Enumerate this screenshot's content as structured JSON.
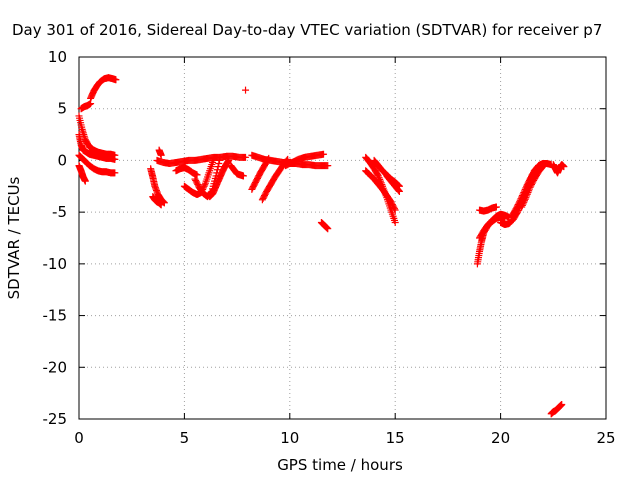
{
  "chart_data": {
    "type": "scatter",
    "title": "Day 301 of 2016, Sidereal Day-to-day VTEC variation (SDTVAR) for receiver p7",
    "xlabel": "GPS time / hours",
    "ylabel": "SDTVAR / TECUs",
    "xlim": [
      0,
      25
    ],
    "ylim": [
      -25,
      10
    ],
    "xticks": [
      0,
      5,
      10,
      15,
      20,
      25
    ],
    "yticks": [
      -25,
      -20,
      -15,
      -10,
      -5,
      0,
      5,
      10
    ],
    "grid": true,
    "marker": "+",
    "color": "#ff0000",
    "segments": [
      {
        "x": [
          0.0,
          0.1,
          0.2,
          0.35,
          0.5,
          0.7,
          0.9,
          1.1,
          1.3,
          1.5,
          1.7
        ],
        "y": [
          2.5,
          1.5,
          1.0,
          0.8,
          0.6,
          0.5,
          0.4,
          0.3,
          0.2,
          0.2,
          0.1
        ]
      },
      {
        "x": [
          0.0,
          0.15,
          0.3,
          0.5,
          0.7,
          0.9,
          1.1,
          1.3,
          1.5,
          1.7
        ],
        "y": [
          4.3,
          3.0,
          2.0,
          1.3,
          1.0,
          0.8,
          0.7,
          0.6,
          0.6,
          0.5
        ]
      },
      {
        "x": [
          0.0,
          0.15,
          0.3,
          0.5,
          0.7,
          0.9,
          1.1,
          1.3,
          1.5,
          1.7
        ],
        "y": [
          0.5,
          0.2,
          -0.1,
          -0.5,
          -0.8,
          -1.0,
          -1.1,
          -1.1,
          -1.2,
          -1.2
        ]
      },
      {
        "x": [
          0.0,
          0.1,
          0.2,
          0.3
        ],
        "y": [
          -0.5,
          -1.0,
          -1.6,
          -2.0
        ]
      },
      {
        "x": [
          0.1,
          0.25,
          0.4,
          0.55
        ],
        "y": [
          5.0,
          5.2,
          5.3,
          5.5
        ]
      },
      {
        "x": [
          0.55,
          0.7,
          0.85,
          1.0,
          1.2,
          1.4,
          1.6,
          1.75
        ],
        "y": [
          6.0,
          6.7,
          7.2,
          7.6,
          7.9,
          8.0,
          7.9,
          7.8
        ]
      },
      {
        "x": [
          3.4,
          3.5,
          3.6,
          3.75,
          3.9,
          4.05
        ],
        "y": [
          -0.8,
          -1.6,
          -2.5,
          -3.3,
          -3.8,
          -4.1
        ]
      },
      {
        "x": [
          3.5,
          3.6,
          3.7,
          3.8,
          3.9
        ],
        "y": [
          -3.5,
          -3.8,
          -4.0,
          -4.1,
          -4.3
        ]
      },
      {
        "x": [
          3.8,
          3.9
        ],
        "y": [
          1.0,
          0.5
        ]
      },
      {
        "x": [
          3.7,
          4.0,
          4.3,
          4.6,
          4.9,
          5.2,
          5.5,
          5.8,
          6.1,
          6.4,
          6.7,
          7.0,
          7.3,
          7.6,
          7.9
        ],
        "y": [
          0.0,
          -0.2,
          -0.3,
          -0.2,
          -0.1,
          0.0,
          0.0,
          0.1,
          0.2,
          0.3,
          0.3,
          0.4,
          0.4,
          0.3,
          0.3
        ]
      },
      {
        "x": [
          4.6,
          4.8,
          5.0,
          5.2,
          5.4,
          5.6
        ],
        "y": [
          -1.0,
          -0.8,
          -0.7,
          -0.9,
          -1.2,
          -1.4
        ]
      },
      {
        "x": [
          5.0,
          5.2,
          5.4,
          5.6,
          5.8,
          6.0,
          6.2,
          6.4
        ],
        "y": [
          -2.5,
          -2.8,
          -3.1,
          -3.3,
          -3.1,
          -2.2,
          -1.0,
          0.2
        ]
      },
      {
        "x": [
          5.5,
          5.7,
          5.9,
          6.1,
          6.3,
          6.5,
          6.7
        ],
        "y": [
          -1.8,
          -2.6,
          -3.2,
          -3.5,
          -3.0,
          -1.5,
          0.3
        ]
      },
      {
        "x": [
          6.2,
          6.35,
          6.5,
          6.65,
          6.8,
          6.95,
          7.1
        ],
        "y": [
          -3.5,
          -3.2,
          -2.5,
          -1.8,
          -1.1,
          -0.5,
          0.0
        ]
      },
      {
        "x": [
          7.2,
          7.35,
          7.5,
          7.65,
          7.8
        ],
        "y": [
          -0.5,
          -0.9,
          -1.3,
          -1.4,
          -1.5
        ]
      },
      {
        "x": [
          7.9
        ],
        "y": [
          6.8
        ]
      },
      {
        "x": [
          8.2,
          8.5,
          8.8,
          9.1,
          9.4,
          9.7,
          10.0,
          10.3,
          10.6,
          10.9,
          11.2,
          11.5,
          11.8
        ],
        "y": [
          0.5,
          0.3,
          0.1,
          0.0,
          -0.1,
          -0.2,
          -0.3,
          -0.3,
          -0.4,
          -0.4,
          -0.5,
          -0.5,
          -0.5
        ]
      },
      {
        "x": [
          8.2,
          8.4,
          8.6,
          8.8,
          9.0
        ],
        "y": [
          -2.8,
          -2.0,
          -1.2,
          -0.5,
          0.2
        ]
      },
      {
        "x": [
          8.7,
          8.9,
          9.1,
          9.3,
          9.5,
          9.7,
          9.9
        ],
        "y": [
          -3.8,
          -3.0,
          -2.3,
          -1.6,
          -1.0,
          -0.4,
          0.1
        ]
      },
      {
        "x": [
          9.8,
          10.1,
          10.4,
          10.7,
          11.0,
          11.3,
          11.6
        ],
        "y": [
          -0.5,
          -0.2,
          0.1,
          0.3,
          0.4,
          0.5,
          0.6
        ]
      },
      {
        "x": [
          11.5,
          11.65,
          11.8
        ],
        "y": [
          -6.0,
          -6.3,
          -6.6
        ]
      },
      {
        "x": [
          13.6,
          13.8,
          14.0,
          14.2,
          14.4,
          14.6,
          14.8,
          15.0
        ],
        "y": [
          0.3,
          -0.2,
          -0.8,
          -1.5,
          -2.5,
          -3.6,
          -4.8,
          -6.0
        ]
      },
      {
        "x": [
          13.6,
          13.8,
          14.0,
          14.2,
          14.4,
          14.6,
          14.8,
          15.0
        ],
        "y": [
          -1.0,
          -1.4,
          -1.8,
          -2.3,
          -2.8,
          -3.4,
          -4.0,
          -4.8
        ]
      },
      {
        "x": [
          14.0,
          14.2,
          14.4,
          14.6,
          14.8,
          15.0,
          15.2
        ],
        "y": [
          0.0,
          -0.5,
          -1.0,
          -1.4,
          -1.8,
          -2.1,
          -2.5
        ]
      },
      {
        "x": [
          14.6,
          14.8,
          15.0,
          15.2
        ],
        "y": [
          -1.5,
          -2.0,
          -2.5,
          -3.0
        ]
      },
      {
        "x": [
          18.9,
          19.0,
          19.1,
          19.2,
          19.4,
          19.6,
          19.8,
          20.0,
          20.2
        ],
        "y": [
          -10.0,
          -8.8,
          -7.8,
          -7.0,
          -6.3,
          -5.9,
          -5.6,
          -5.5,
          -5.6
        ]
      },
      {
        "x": [
          19.0,
          19.2,
          19.4,
          19.6,
          19.8,
          20.0,
          20.2,
          20.4
        ],
        "y": [
          -7.5,
          -6.8,
          -6.2,
          -5.8,
          -5.4,
          -5.2,
          -5.3,
          -5.5
        ]
      },
      {
        "x": [
          19.0,
          19.2,
          19.4,
          19.6,
          19.8
        ],
        "y": [
          -4.8,
          -4.9,
          -4.8,
          -4.6,
          -4.5
        ]
      },
      {
        "x": [
          20.0,
          20.2,
          20.4,
          20.6,
          20.8,
          21.0,
          21.2,
          21.4,
          21.6,
          21.8,
          22.0,
          22.2,
          22.4
        ],
        "y": [
          -6.0,
          -6.2,
          -6.1,
          -5.7,
          -5.0,
          -4.1,
          -3.0,
          -1.9,
          -1.0,
          -0.5,
          -0.3,
          -0.3,
          -0.4
        ]
      },
      {
        "x": [
          20.5,
          20.7,
          20.9,
          21.1,
          21.3,
          21.5,
          21.7,
          21.9,
          22.1
        ],
        "y": [
          -5.5,
          -4.8,
          -4.0,
          -3.1,
          -2.2,
          -1.4,
          -0.8,
          -0.4,
          -0.3
        ]
      },
      {
        "x": [
          21.0,
          21.2,
          21.4,
          21.6,
          21.8,
          22.0
        ],
        "y": [
          -4.5,
          -3.6,
          -2.6,
          -1.8,
          -1.1,
          -0.6
        ]
      },
      {
        "x": [
          22.5,
          22.6,
          22.7,
          22.8,
          22.9,
          23.0
        ],
        "y": [
          -0.4,
          -0.8,
          -1.2,
          -0.7,
          -0.4,
          -0.6
        ]
      },
      {
        "x": [
          22.4,
          22.5,
          22.6,
          22.7,
          22.8,
          22.9
        ],
        "y": [
          -24.5,
          -24.3,
          -24.2,
          -24.0,
          -23.8,
          -23.6
        ]
      }
    ]
  }
}
